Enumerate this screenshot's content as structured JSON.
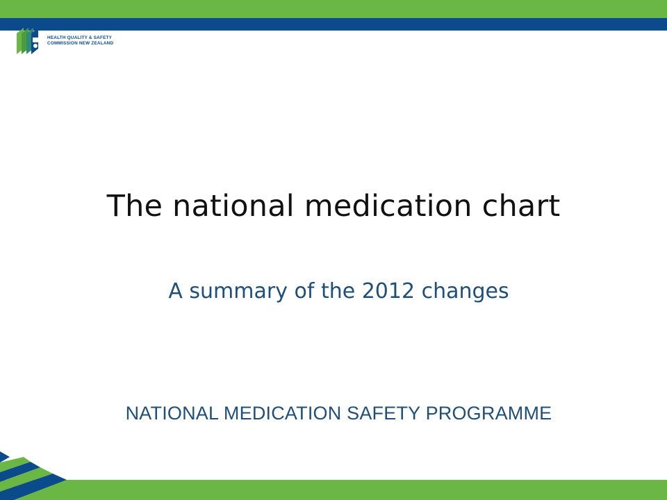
{
  "logo": {
    "line1": "HEALTH QUALITY & SAFETY",
    "line2": "COMMISSION NEW ZEALAND",
    "icon": "hqsc-logo-icon"
  },
  "slide": {
    "title": "The national medication chart",
    "subtitle": "A summary of the 2012 changes",
    "programme": "NATIONAL MEDICATION SAFETY PROGRAMME"
  },
  "colors": {
    "green": "#6ab746",
    "blue": "#0b4a8b",
    "text_blue": "#1f4e79"
  }
}
